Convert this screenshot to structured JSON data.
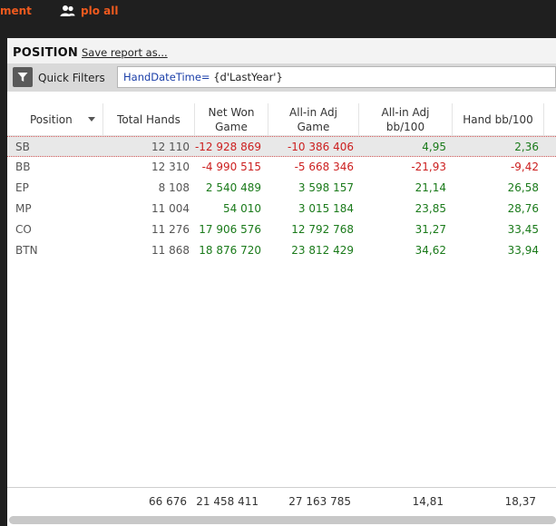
{
  "topbar": {
    "tab_partial": "ment",
    "tab_user": "plo all"
  },
  "panel": {
    "title": "POSITION",
    "save_link": "Save report as..."
  },
  "filters": {
    "label": "Quick Filters",
    "expression_key": "HandDateTime=",
    "expression_value": " {d'LastYear'}"
  },
  "columns": [
    {
      "id": "position",
      "label": "Position"
    },
    {
      "id": "total_hands",
      "label": "Total Hands"
    },
    {
      "id": "net_won_game",
      "label": "Net Won\nGame"
    },
    {
      "id": "allin_adj_game",
      "label": "All-in Adj\nGame"
    },
    {
      "id": "allin_adj_bb100",
      "label": "All-in Adj\nbb/100"
    },
    {
      "id": "hand_bb100",
      "label": "Hand bb/100"
    }
  ],
  "rows": [
    {
      "position": "SB",
      "total_hands": "12 110",
      "net_won_game": "-12 928 869",
      "allin_adj_game": "-10 386 406",
      "allin_adj_bb100": "4,95",
      "hand_bb100": "2,36"
    },
    {
      "position": "BB",
      "total_hands": "12 310",
      "net_won_game": "-4 990 515",
      "allin_adj_game": "-5 668 346",
      "allin_adj_bb100": "-21,93",
      "hand_bb100": "-9,42"
    },
    {
      "position": "EP",
      "total_hands": "8 108",
      "net_won_game": "2 540 489",
      "allin_adj_game": "3 598 157",
      "allin_adj_bb100": "21,14",
      "hand_bb100": "26,58"
    },
    {
      "position": "MP",
      "total_hands": "11 004",
      "net_won_game": "54 010",
      "allin_adj_game": "3 015 184",
      "allin_adj_bb100": "23,85",
      "hand_bb100": "28,76"
    },
    {
      "position": "CO",
      "total_hands": "11 276",
      "net_won_game": "17 906 576",
      "allin_adj_game": "12 792 768",
      "allin_adj_bb100": "31,27",
      "hand_bb100": "33,45"
    },
    {
      "position": "BTN",
      "total_hands": "11 868",
      "net_won_game": "18 876 720",
      "allin_adj_game": "23 812 429",
      "allin_adj_bb100": "34,62",
      "hand_bb100": "33,94"
    }
  ],
  "totals": {
    "total_hands": "66 676",
    "net_won_game": "21 458 411",
    "allin_adj_game": "27 163 785",
    "allin_adj_bb100": "14,81",
    "hand_bb100": "18,37"
  },
  "colors": {
    "accent": "#ef5a1e",
    "positive": "#1a7a1a",
    "negative": "#cc1f1f",
    "link_blue": "#1a3ea8"
  },
  "icons": {
    "user_tab": "people-icon",
    "filter": "funnel-icon",
    "sort": "caret-down-icon"
  }
}
